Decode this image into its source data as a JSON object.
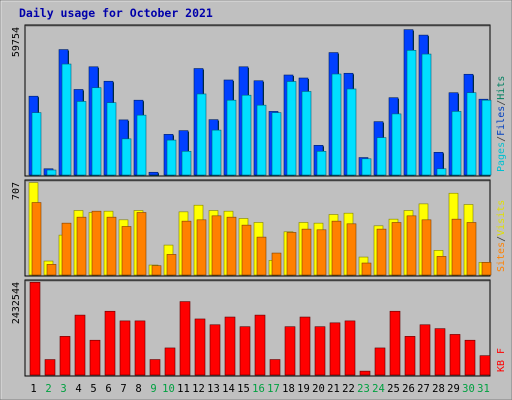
{
  "chart_data": [
    {
      "type": "bar",
      "title": "Daily usage for October 2021",
      "ylabel_parts": [
        {
          "text": "Pages",
          "color": "#00c0d0"
        },
        {
          "text": "/",
          "color": "#404040"
        },
        {
          "text": "Files",
          "color": "#0040c0"
        },
        {
          "text": "/",
          "color": "#404040"
        },
        {
          "text": "Hits",
          "color": "#008060"
        }
      ],
      "ymax_label": "59754",
      "ylim": [
        0,
        59754
      ],
      "categories": [
        "1",
        "2",
        "3",
        "4",
        "5",
        "6",
        "7",
        "8",
        "9",
        "10",
        "11",
        "12",
        "13",
        "14",
        "15",
        "16",
        "17",
        "18",
        "19",
        "20",
        "21",
        "22",
        "23",
        "24",
        "25",
        "26",
        "27",
        "28",
        "29",
        "30",
        "31"
      ],
      "weekend_days": [
        "2",
        "3",
        "9",
        "10",
        "16",
        "17",
        "23",
        "24",
        "30",
        "31"
      ],
      "series": [
        {
          "name": "Hits",
          "color": "#008080",
          "values": [
            31600,
            2500,
            50300,
            34300,
            43400,
            37600,
            22100,
            30000,
            1100,
            16300,
            17800,
            42700,
            22200,
            38100,
            43400,
            37800,
            25500,
            40100,
            38900,
            11900,
            49100,
            40800,
            7000,
            21400,
            31000,
            58300,
            56100,
            9100,
            33000,
            40400,
            30400
          ]
        },
        {
          "name": "Files",
          "color": "#0040ff",
          "values": [
            31600,
            2500,
            50300,
            34300,
            43400,
            37600,
            22100,
            30000,
            1100,
            16300,
            17800,
            42700,
            22200,
            38100,
            43400,
            37800,
            25500,
            40100,
            38900,
            11900,
            49100,
            40800,
            7000,
            21400,
            31000,
            58300,
            56100,
            9100,
            33000,
            40400,
            30400
          ]
        },
        {
          "name": "Pages",
          "color": "#00e0ff",
          "values": [
            25000,
            2000,
            44500,
            29500,
            35000,
            29000,
            14500,
            24000,
            0,
            14000,
            9500,
            32500,
            18000,
            30000,
            32000,
            28000,
            25000,
            37500,
            33500,
            9500,
            40500,
            34500,
            6500,
            15000,
            24500,
            50000,
            48500,
            2500,
            25500,
            33000,
            30000
          ]
        }
      ]
    },
    {
      "type": "bar",
      "ylabel_parts": [
        {
          "text": "Sites",
          "color": "#ff8000"
        },
        {
          "text": "/",
          "color": "#404040"
        },
        {
          "text": "Visits",
          "color": "#e0e000"
        }
      ],
      "ymax_label": "707",
      "ylim": [
        0,
        707
      ],
      "categories": [
        "1",
        "2",
        "3",
        "4",
        "5",
        "6",
        "7",
        "8",
        "9",
        "10",
        "11",
        "12",
        "13",
        "14",
        "15",
        "16",
        "17",
        "18",
        "19",
        "20",
        "21",
        "22",
        "23",
        "24",
        "25",
        "26",
        "27",
        "28",
        "29",
        "30",
        "31"
      ],
      "series": [
        {
          "name": "Visits",
          "color": "#ffff00",
          "values": [
            695,
            105,
            300,
            485,
            470,
            480,
            415,
            485,
            75,
            225,
            475,
            525,
            485,
            480,
            425,
            395,
            110,
            325,
            395,
            390,
            455,
            465,
            135,
            370,
            420,
            485,
            535,
            185,
            615,
            530,
            95
          ]
        },
        {
          "name": "Sites",
          "color": "#ff8000",
          "values": [
            545,
            80,
            390,
            435,
            480,
            435,
            365,
            470,
            70,
            155,
            405,
            415,
            445,
            435,
            375,
            285,
            165,
            320,
            345,
            340,
            405,
            385,
            90,
            345,
            395,
            445,
            415,
            140,
            420,
            395,
            95
          ]
        }
      ]
    },
    {
      "type": "bar",
      "ylabel_parts": [
        {
          "text": "KB F",
          "color": "#ff0000"
        }
      ],
      "ymax_label": "2432544",
      "ylim": [
        0,
        2432544
      ],
      "categories": [
        "1",
        "2",
        "3",
        "4",
        "5",
        "6",
        "7",
        "8",
        "9",
        "10",
        "11",
        "12",
        "13",
        "14",
        "15",
        "16",
        "17",
        "18",
        "19",
        "20",
        "21",
        "22",
        "23",
        "24",
        "25",
        "26",
        "27",
        "28",
        "29",
        "30",
        "31"
      ],
      "series": [
        {
          "name": "KB F",
          "color": "#ff0000",
          "values": [
            2400000,
            400000,
            1000000,
            1550000,
            900000,
            1650000,
            1400000,
            1400000,
            400000,
            700000,
            1900000,
            1450000,
            1300000,
            1500000,
            1250000,
            1550000,
            400000,
            1250000,
            1500000,
            1250000,
            1350000,
            1400000,
            100000,
            700000,
            1650000,
            1000000,
            1300000,
            1200000,
            1050000,
            900000,
            500000
          ]
        }
      ]
    }
  ]
}
